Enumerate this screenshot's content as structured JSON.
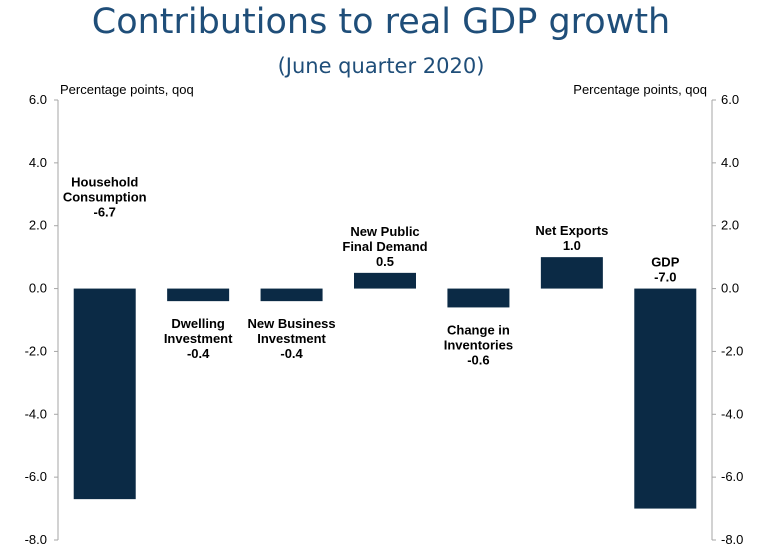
{
  "chart_data": {
    "type": "bar",
    "title": "Contributions to real GDP growth",
    "subtitle": "(June quarter 2020)",
    "ylabel_left": "Percentage points, qoq",
    "ylabel_right": "Percentage points, qoq",
    "ylim": [
      -8,
      6
    ],
    "yticks": [
      "6.0",
      "4.0",
      "2.0",
      "0.0",
      "-2.0",
      "-4.0",
      "-6.0",
      "-8.0"
    ],
    "ytick_values": [
      6,
      4,
      2,
      0,
      -2,
      -4,
      -6,
      -8
    ],
    "grid": false,
    "legend": "none",
    "bar_color": "#0b2a45",
    "categories": [
      {
        "lines": [
          "Household",
          "Consumption"
        ],
        "value_label": "-6.7"
      },
      {
        "lines": [
          "Dwelling",
          "Investment"
        ],
        "value_label": "-0.4"
      },
      {
        "lines": [
          "New Business",
          "Investment"
        ],
        "value_label": "-0.4"
      },
      {
        "lines": [
          "New Public",
          "Final Demand"
        ],
        "value_label": "0.5"
      },
      {
        "lines": [
          "Change in",
          "Inventories"
        ],
        "value_label": "-0.6"
      },
      {
        "lines": [
          "Net Exports"
        ],
        "value_label": "1.0"
      },
      {
        "lines": [
          "GDP"
        ],
        "value_label": "-7.0"
      }
    ],
    "values": [
      -6.7,
      -0.4,
      -0.4,
      0.5,
      -0.6,
      1.0,
      -7.0
    ]
  }
}
